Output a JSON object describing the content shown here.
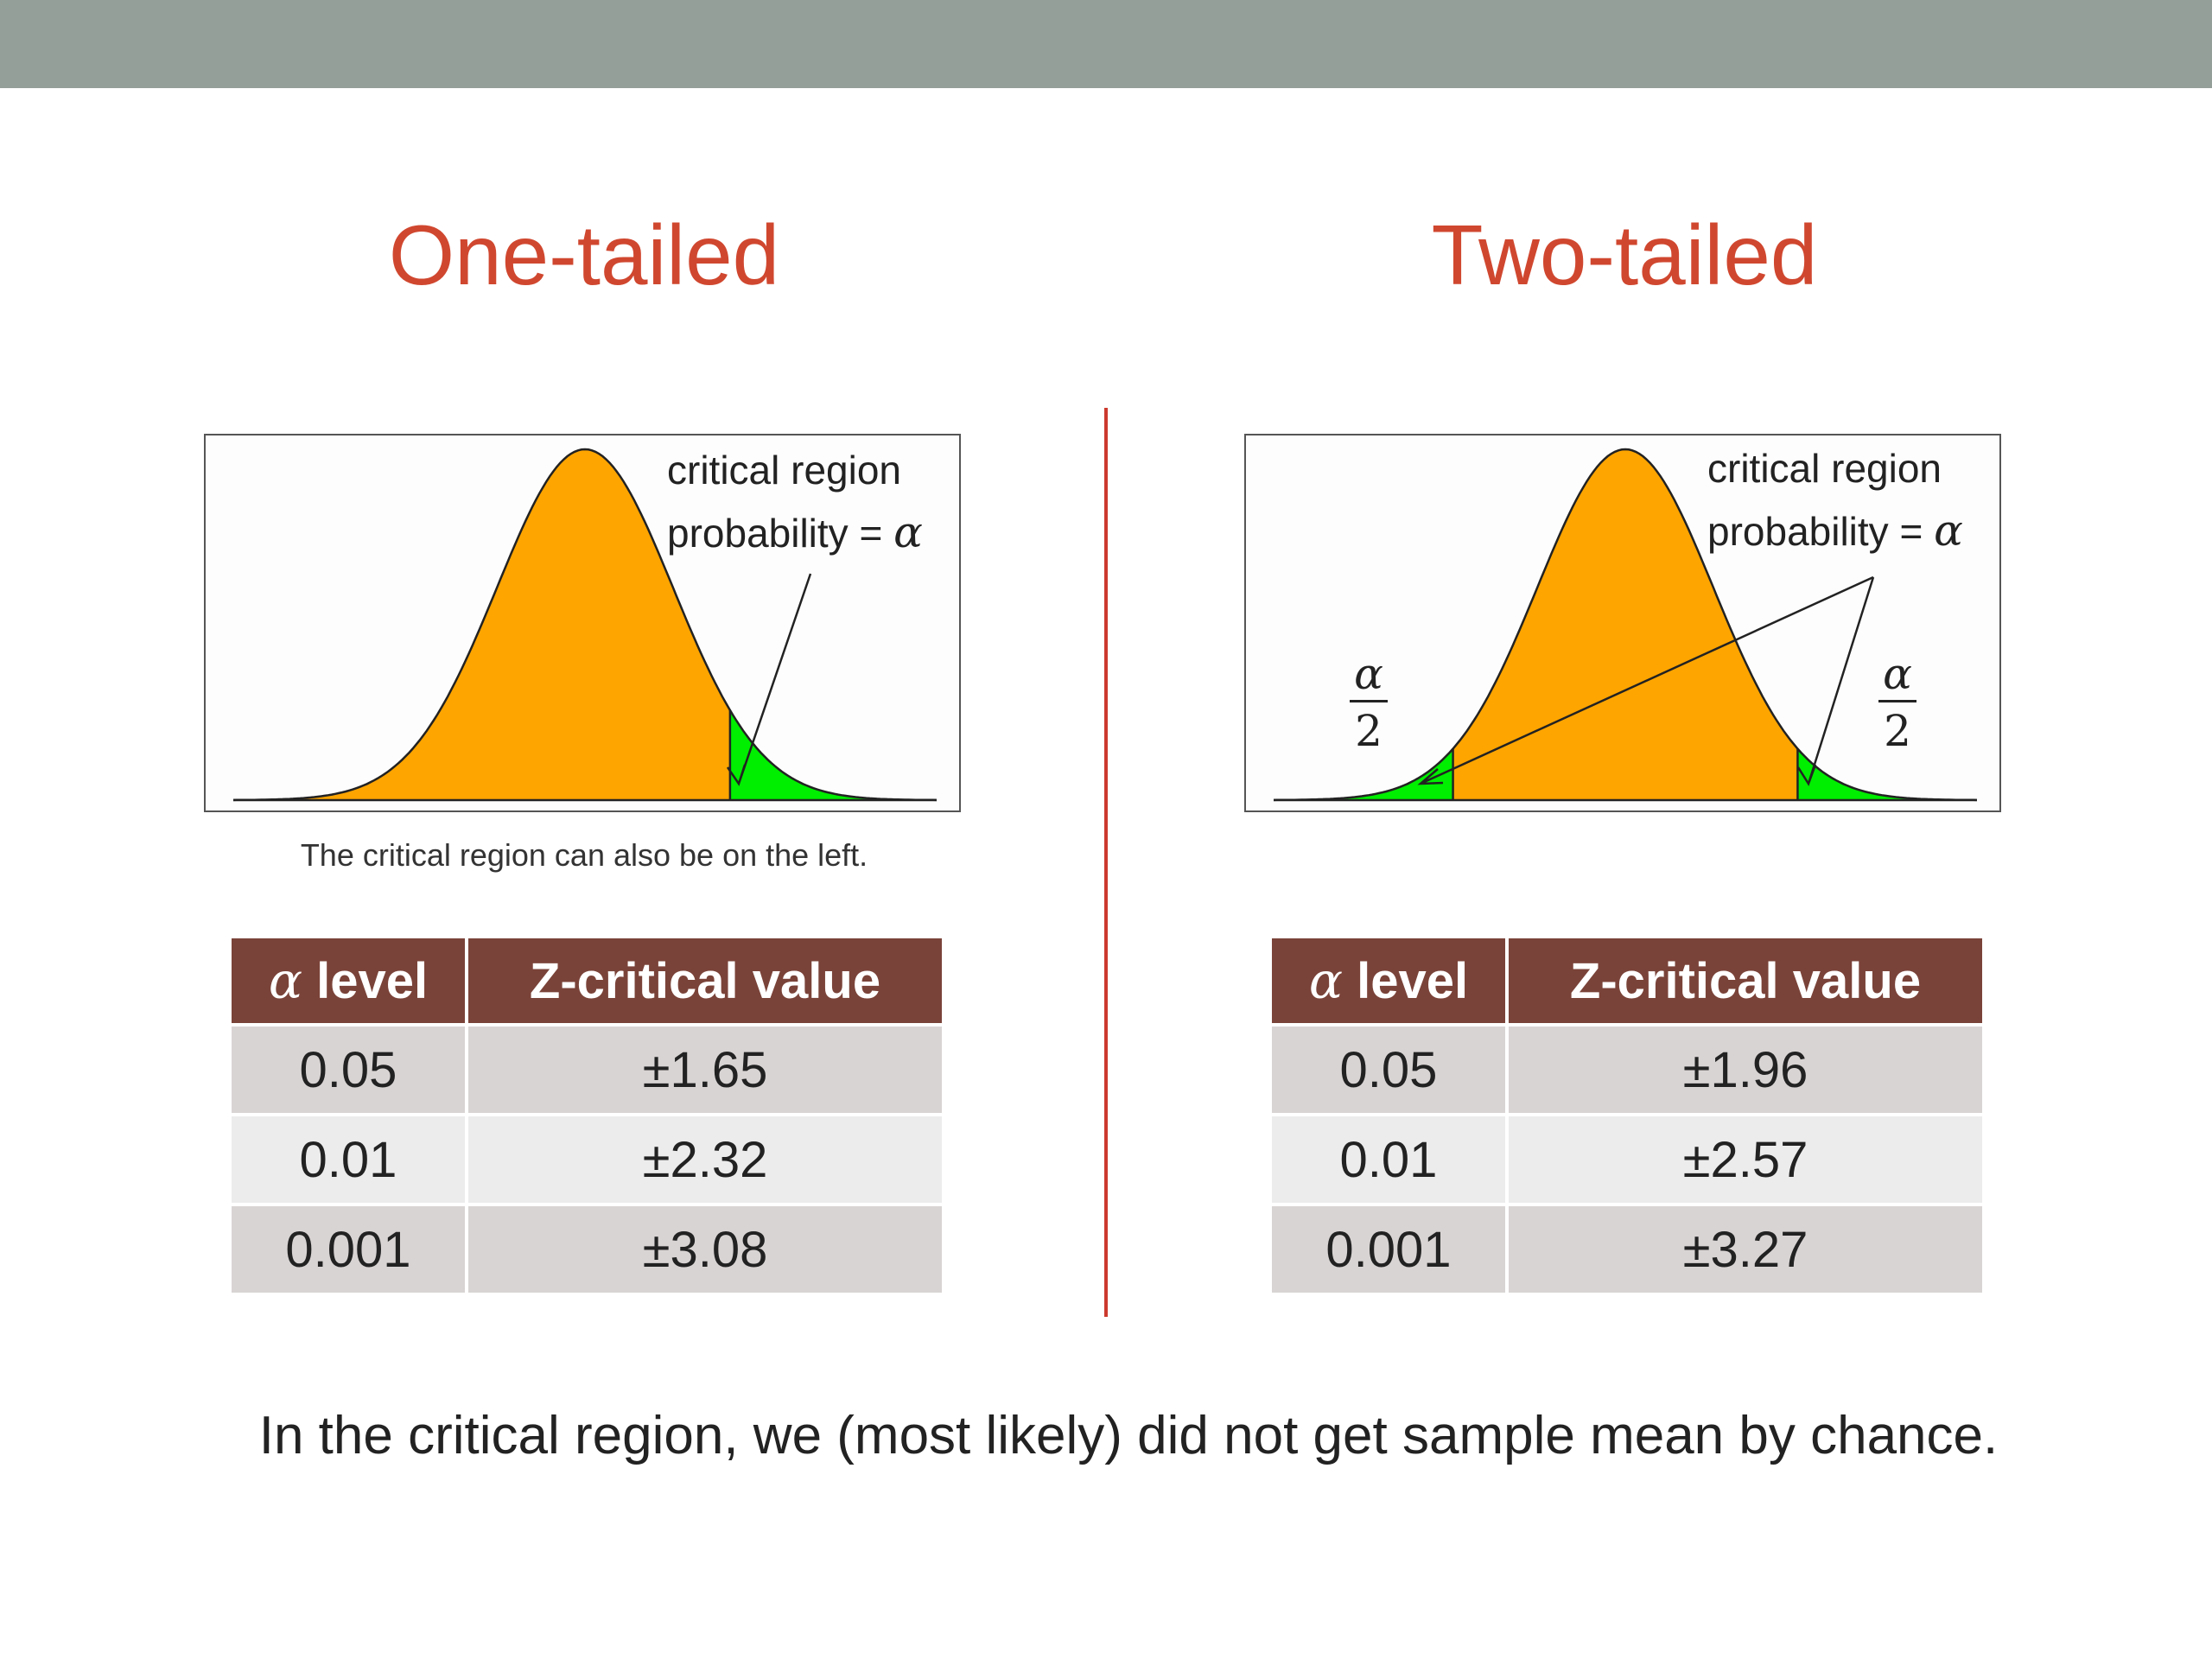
{
  "colors": {
    "header_bar": "#939f98",
    "title": "#d0472f",
    "divider": "#cc3a2e",
    "body_fill": "#ffa500",
    "critical_fill": "#00ee00",
    "table_header": "#7a4339",
    "table_row_dark": "#d9d4d4",
    "table_row_light": "#ececec"
  },
  "one_tailed": {
    "title": "One-tailed",
    "curve": {
      "label_line1": "critical region",
      "label_line2_prefix": "probability = ",
      "alpha": "α"
    },
    "note": "The critical region can also be on the left.",
    "table": {
      "col1_symbol": "α",
      "col1_label": " level",
      "col2_label": "Z-critical value",
      "rows": [
        {
          "alpha": "0.05",
          "z": "±1.65"
        },
        {
          "alpha": "0.01",
          "z": "±2.32"
        },
        {
          "alpha": "0.001",
          "z": "±3.08"
        }
      ]
    }
  },
  "two_tailed": {
    "title": "Two-tailed",
    "curve": {
      "label_line1": "critical region",
      "label_line2_prefix": "probability = ",
      "alpha": "α",
      "tail_numerator": "α",
      "tail_denominator": "2"
    },
    "table": {
      "col1_symbol": "α",
      "col1_label": " level",
      "col2_label": "Z-critical value",
      "rows": [
        {
          "alpha": "0.05",
          "z": "±1.96"
        },
        {
          "alpha": "0.01",
          "z": "±2.57"
        },
        {
          "alpha": "0.001",
          "z": "±3.27"
        }
      ]
    }
  },
  "footer": "In the critical region, we (most likely) did not get sample mean by chance."
}
